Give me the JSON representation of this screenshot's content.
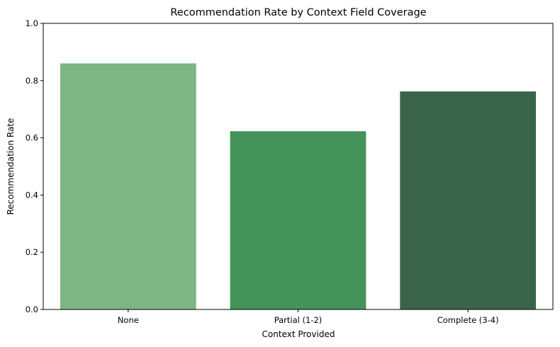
{
  "chart_data": {
    "type": "bar",
    "title": "Recommendation Rate by Context Field Coverage",
    "xlabel": "Context Provided",
    "ylabel": "Recommendation Rate",
    "categories": [
      "None",
      "Partial (1-2)",
      "Complete (3-4)"
    ],
    "values": [
      0.86,
      0.623,
      0.762
    ],
    "colors": [
      "#7db585",
      "#43935a",
      "#3a6449"
    ],
    "ylim": [
      0,
      1
    ],
    "yticks": [
      "0.0",
      "0.2",
      "0.4",
      "0.6",
      "0.8",
      "1.0"
    ],
    "grid": false,
    "legend": "none"
  }
}
